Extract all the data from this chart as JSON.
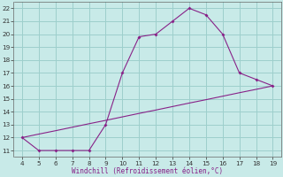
{
  "xlabel": "Windchill (Refroidissement éolien,°C)",
  "bg_color": "#c8eae8",
  "grid_color": "#9dcfcc",
  "line_color": "#882288",
  "upper_x": [
    4,
    5,
    6,
    7,
    8,
    9,
    10,
    11,
    12,
    13,
    14,
    15,
    16,
    17,
    18,
    19
  ],
  "upper_y": [
    12,
    11,
    11,
    11,
    11,
    13,
    17,
    19.8,
    20,
    21,
    22,
    21.5,
    20,
    17,
    16.5,
    16
  ],
  "lower_x": [
    4,
    5,
    6,
    7,
    8,
    9,
    10,
    11,
    12,
    13,
    14,
    15,
    16,
    17,
    18,
    19
  ],
  "lower_y": [
    12.0,
    12.27,
    12.53,
    12.8,
    13.07,
    13.33,
    13.6,
    13.87,
    14.13,
    14.4,
    14.67,
    14.93,
    15.2,
    15.47,
    15.73,
    16.0
  ],
  "xlim": [
    3.5,
    19.5
  ],
  "ylim": [
    10.5,
    22.5
  ],
  "xticks": [
    4,
    5,
    6,
    7,
    8,
    9,
    10,
    11,
    12,
    13,
    14,
    15,
    16,
    17,
    18,
    19
  ],
  "yticks": [
    11,
    12,
    13,
    14,
    15,
    16,
    17,
    18,
    19,
    20,
    21,
    22
  ]
}
